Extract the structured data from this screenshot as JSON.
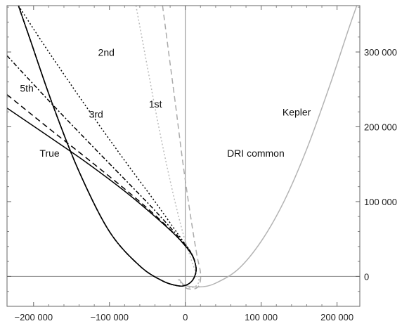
{
  "chart_data": {
    "type": "line",
    "title": "",
    "xlabel": "",
    "ylabel": "",
    "xlim": [
      -235000,
      230000
    ],
    "ylim": [
      -40000,
      362000
    ],
    "grid": false,
    "frame": true,
    "x_ticks": [
      {
        "value": -200000,
        "label": "−200 000"
      },
      {
        "value": -100000,
        "label": "−100 000"
      },
      {
        "value": 0,
        "label": "0"
      },
      {
        "value": 100000,
        "label": "100 000"
      },
      {
        "value": 200000,
        "label": "200 000"
      }
    ],
    "y_ticks": [
      {
        "value": 0,
        "label": "0"
      },
      {
        "value": 100000,
        "label": "100 000"
      },
      {
        "value": 200000,
        "label": "200 000"
      },
      {
        "value": 300000,
        "label": "300 000"
      }
    ],
    "y_tick_side": "right",
    "series": [
      {
        "name": "True",
        "color": "#000000",
        "dash": "solid",
        "points": [
          [
            -235000,
            225000
          ],
          [
            -180000,
            187000
          ],
          [
            -130000,
            152000
          ],
          [
            -80000,
            114000
          ],
          [
            -40000,
            80000
          ],
          [
            -10000,
            52000
          ],
          [
            8000,
            30000
          ],
          [
            14000,
            13000
          ],
          [
            13000,
            2000
          ],
          [
            8000,
            -7000
          ],
          [
            0,
            -12000
          ],
          [
            -10000,
            -12500
          ],
          [
            -30000,
            -6000
          ],
          [
            -60000,
            14000
          ],
          [
            -100000,
            60000
          ],
          [
            -140000,
            140000
          ],
          [
            -175000,
            230000
          ],
          [
            -205000,
            318000
          ],
          [
            -220000,
            362000
          ]
        ]
      },
      {
        "name": "5th",
        "color": "#000000",
        "dash": "dashed",
        "points": [
          [
            -235000,
            243000
          ],
          [
            -180000,
            198000
          ],
          [
            -130000,
            158000
          ],
          [
            -80000,
            117000
          ],
          [
            -40000,
            82000
          ],
          [
            -10000,
            52000
          ],
          [
            8000,
            30000
          ],
          [
            14000,
            13000
          ],
          [
            13000,
            2000
          ],
          [
            8000,
            -7000
          ],
          [
            0,
            -12000
          ],
          [
            -10000,
            -12500
          ],
          [
            -30000,
            -6000
          ],
          [
            -60000,
            14000
          ],
          [
            -100000,
            60000
          ],
          [
            -140000,
            140000
          ],
          [
            -175000,
            230000
          ],
          [
            -205000,
            318000
          ],
          [
            -220000,
            362000
          ]
        ]
      },
      {
        "name": "3rd",
        "color": "#000000",
        "dash": "dash-dot",
        "points": [
          [
            -235000,
            295000
          ],
          [
            -180000,
            235000
          ],
          [
            -130000,
            182000
          ],
          [
            -80000,
            130000
          ],
          [
            -40000,
            88000
          ],
          [
            -10000,
            54000
          ],
          [
            8000,
            31000
          ],
          [
            14000,
            13000
          ],
          [
            13000,
            2000
          ],
          [
            8000,
            -7000
          ],
          [
            0,
            -12000
          ],
          [
            -10000,
            -12500
          ],
          [
            -30000,
            -6000
          ],
          [
            -60000,
            14000
          ],
          [
            -100000,
            60000
          ],
          [
            -140000,
            140000
          ],
          [
            -175000,
            230000
          ],
          [
            -205000,
            318000
          ],
          [
            -220000,
            362000
          ]
        ]
      },
      {
        "name": "2nd",
        "color": "#000000",
        "dash": "dotted",
        "points": [
          [
            -220000,
            362000
          ],
          [
            -180000,
            300000
          ],
          [
            -130000,
            226000
          ],
          [
            -80000,
            155000
          ],
          [
            -40000,
            100000
          ],
          [
            -10000,
            57000
          ],
          [
            8000,
            31000
          ],
          [
            14000,
            13000
          ],
          [
            13000,
            2000
          ],
          [
            8000,
            -7000
          ],
          [
            0,
            -12000
          ],
          [
            -10000,
            -12500
          ],
          [
            -30000,
            -6000
          ],
          [
            -60000,
            14000
          ],
          [
            -100000,
            60000
          ],
          [
            -140000,
            140000
          ],
          [
            -175000,
            230000
          ],
          [
            -205000,
            318000
          ],
          [
            -220000,
            362000
          ]
        ]
      },
      {
        "name": "1st",
        "color": "#bbbbbb",
        "dash": "dotted",
        "points": [
          [
            -65000,
            362000
          ],
          [
            -50000,
            280000
          ],
          [
            -35000,
            200000
          ],
          [
            -20000,
            128000
          ],
          [
            -5000,
            65000
          ],
          [
            6000,
            28000
          ],
          [
            14000,
            5000
          ],
          [
            18000,
            -5000
          ],
          [
            15000,
            -12000
          ],
          [
            8000,
            -15000
          ],
          [
            0,
            -14000
          ],
          [
            -5000,
            -10000
          ],
          [
            -10000,
            -3000
          ]
        ]
      },
      {
        "name": "DRI common",
        "color": "#aaaaaa",
        "dash": "dashed",
        "points": [
          [
            -30000,
            362000
          ],
          [
            -22000,
            300000
          ],
          [
            -13000,
            230000
          ],
          [
            -3000,
            150000
          ],
          [
            7000,
            80000
          ],
          [
            15000,
            30000
          ],
          [
            20000,
            5000
          ],
          [
            19000,
            -10000
          ],
          [
            14000,
            -16000
          ],
          [
            6000,
            -17000
          ],
          [
            0,
            -15000
          ],
          [
            -4000,
            -10000
          ]
        ]
      },
      {
        "name": "Kepler",
        "color": "#b3b3b3",
        "dash": "solid",
        "points": [
          [
            -8000,
            -4000
          ],
          [
            0,
            -12000
          ],
          [
            20000,
            -14000
          ],
          [
            40000,
            -9000
          ],
          [
            70000,
            10000
          ],
          [
            100000,
            47000
          ],
          [
            130000,
            100000
          ],
          [
            160000,
            170000
          ],
          [
            190000,
            254000
          ],
          [
            215000,
            330000
          ],
          [
            226000,
            362000
          ]
        ]
      }
    ],
    "annotations": [
      {
        "text": "2nd",
        "x": -115000,
        "y": 295000
      },
      {
        "text": "5th",
        "x": -218000,
        "y": 247000
      },
      {
        "text": "3rd",
        "x": -127000,
        "y": 212000
      },
      {
        "text": "1st",
        "x": -48000,
        "y": 226000
      },
      {
        "text": "Kepler",
        "x": 128000,
        "y": 215000
      },
      {
        "text": "True",
        "x": -192000,
        "y": 160000
      },
      {
        "text": "DRI common",
        "x": 55000,
        "y": 160000
      }
    ]
  }
}
